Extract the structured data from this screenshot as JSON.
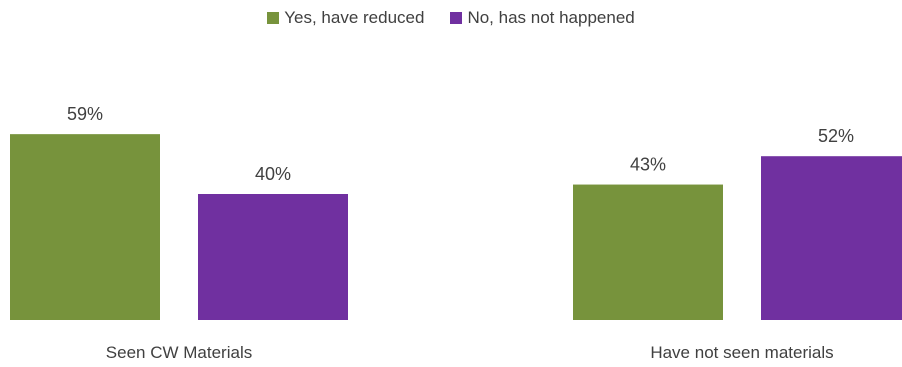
{
  "chart_data": {
    "type": "bar",
    "categories": [
      "Seen CW Materials",
      "Have not seen materials"
    ],
    "series": [
      {
        "name": "Yes, have reduced",
        "color": "#77933C",
        "values": [
          59,
          43
        ]
      },
      {
        "name": "No, has not happened",
        "color": "#7030A0",
        "values": [
          40,
          52
        ]
      }
    ],
    "data_labels": [
      [
        "59%",
        "43%"
      ],
      [
        "40%",
        "52%"
      ]
    ],
    "value_suffix": "%",
    "ylim": [
      0,
      100
    ],
    "grid": false,
    "legend_position": "top-center"
  }
}
